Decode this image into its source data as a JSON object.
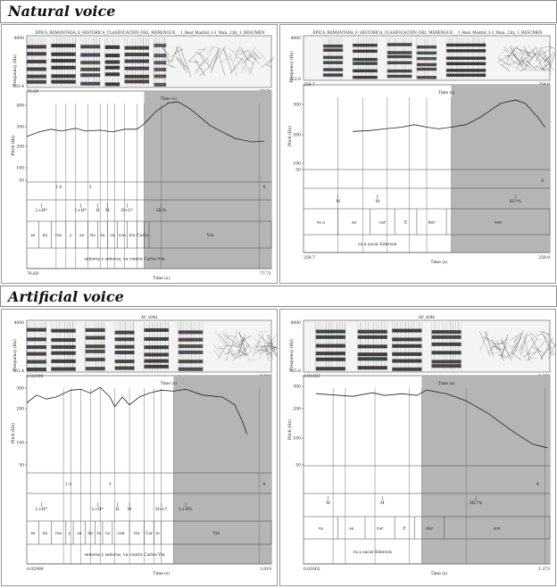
{
  "natural": {
    "heading": "Natural voice",
    "left": {
      "title": "_ÉPICA_REMONTADA_E_HISTÓRICA_CLASIFICACIÓN_DEL_MERENGUE_ _1_Real_Madrid_3-1_Man._City_1_RESUMEN",
      "freq_axis_label": "Frequency (Hz)",
      "freq_top": "4000",
      "freq_bottom": "333.4",
      "time_start": "76.69",
      "time_end": "77.71",
      "time_label": "Time (s)",
      "pitch_axis_label": "Pitch (Hz)",
      "pitch_ticks": [
        "400",
        "300",
        "200",
        "100",
        "50"
      ],
      "break_labels": [
        "1 0",
        "3",
        "4"
      ],
      "tones": [
        "L+H*",
        "L+H*",
        "H",
        "M",
        "H+L*",
        "HL%"
      ],
      "syllables": [
        "se",
        "ño",
        "res",
        "y",
        "se",
        "ño",
        "ra",
        "va",
        "con",
        "tra",
        "Car",
        "lo",
        "Vin"
      ],
      "sentence": "señores y señoras, va contra Carlos Vin",
      "bottom_start": "76.69",
      "bottom_end": "77.71",
      "bottom_time_label": "Time (s)"
    },
    "right": {
      "title": "_ÉPICA_REMONTADA_E_HISTÓRICA_CLASIFICACIÓN_DEL_MERENGUE_ _1_Real_Madrid_3-1_Man._City_1_RESUMEN",
      "freq_axis_label": "Frequency (Hz)",
      "freq_top": "4000",
      "freq_bottom": "322.6",
      "time_start": "258.7",
      "time_end": "259.9",
      "time_label": "Time (s)",
      "pitch_axis_label": "Pitch (Hz)",
      "pitch_ticks": [
        "300",
        "200",
        "100",
        "50"
      ],
      "break_labels": [
        "4"
      ],
      "tones": [
        "M",
        "M",
        "HL*%"
      ],
      "syllables": [
        "va a",
        "sa",
        "car",
        "E",
        "der",
        "son"
      ],
      "sentence": "va a sacar Ederson",
      "bottom_start": "258.7",
      "bottom_end": "259.9",
      "bottom_time_label": "Time (s)"
    }
  },
  "artificial": {
    "heading": "Artificial voice",
    "left": {
      "title": "AV_s04d",
      "freq_axis_label": "Frequency (Hz)",
      "freq_top": "4000",
      "freq_bottom": "361.4",
      "time_start": "0.02999",
      "time_end": "3.019",
      "time_label": "Time (s)",
      "pitch_axis_label": "Pitch (Hz)",
      "pitch_ticks": [
        "300",
        "200",
        "100",
        "50"
      ],
      "break_labels": [
        "1 0",
        "3",
        "4"
      ],
      "tones": [
        "L+H*",
        "L+H*",
        "H",
        "M",
        "H+L*",
        "L+H%"
      ],
      "syllables": [
        "se",
        "ño",
        "res",
        "y",
        "se",
        "ño",
        "ra",
        "va",
        "con",
        "tra",
        "Car",
        "lo",
        "Vin"
      ],
      "sentence": "señores y señoras, va contra Carlos Vin",
      "bottom_start": "0.02999",
      "bottom_end": "3.019",
      "bottom_time_label": "Time (s)"
    },
    "right": {
      "title": "AV_s04b",
      "freq_axis_label": "Frequency (Hz)",
      "freq_top": "4000",
      "freq_bottom": "325.6",
      "time_start": "0.01602",
      "time_end": "1.373",
      "time_label": "Time (s)",
      "pitch_axis_label": "Pitch (Hz)",
      "pitch_ticks": [
        "300",
        "200",
        "100",
        "50"
      ],
      "break_labels": [
        "4"
      ],
      "tones": [
        "M",
        "M",
        "ML*%"
      ],
      "syllables": [
        "va",
        "sa",
        "car",
        "E",
        "der",
        "son"
      ],
      "sentence": "va a sacar Ederson",
      "bottom_start": "0.01602",
      "bottom_end": "1.373",
      "bottom_time_label": "Time (s)"
    }
  }
}
